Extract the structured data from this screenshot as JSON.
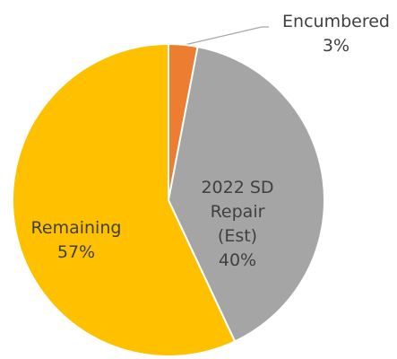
{
  "chart_data": {
    "type": "pie",
    "categories": [
      "Encumbered",
      "2022 SD Repair (Est)",
      "Remaining"
    ],
    "values": [
      3,
      40,
      57
    ],
    "value_labels": [
      "3%",
      "40%",
      "57%"
    ],
    "colors": [
      "#ed7d31",
      "#a5a5a5",
      "#ffc000"
    ]
  }
}
